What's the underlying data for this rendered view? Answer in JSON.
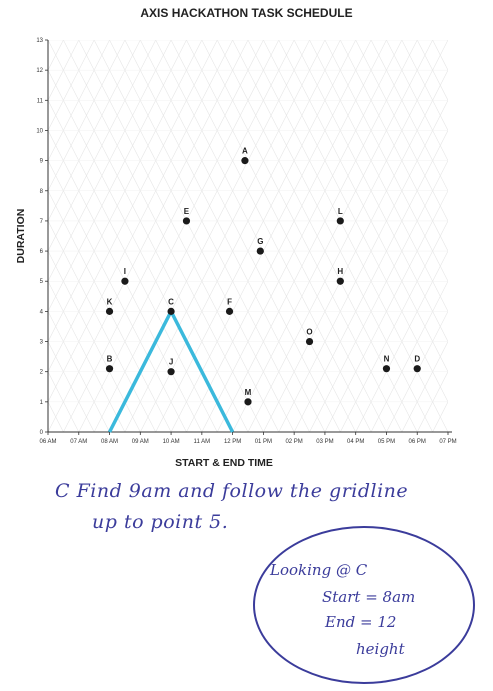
{
  "chart_data": {
    "type": "scatter",
    "title": "AXIS HACKATHON TASK SCHEDULE",
    "xlabel": "START & END TIME",
    "ylabel": "DURATION",
    "x_ticks": [
      "06 AM",
      "07 AM",
      "08 AM",
      "09 AM",
      "10 AM",
      "11 AM",
      "12 PM",
      "01 PM",
      "02 PM",
      "03 PM",
      "04 PM",
      "05 PM",
      "06 PM",
      "07 PM"
    ],
    "y_ticks": [
      "0",
      "1",
      "2",
      "3",
      "4",
      "5",
      "6",
      "7",
      "8",
      "9",
      "10",
      "11",
      "12",
      "13"
    ],
    "xlim": [
      6,
      19
    ],
    "ylim": [
      0,
      13
    ],
    "x_unit": "hour of day (6 = 06 AM, 19 = 07 PM)",
    "points": [
      {
        "label": "A",
        "x": 12.4,
        "y": 9
      },
      {
        "label": "B",
        "x": 8.0,
        "y": 2.1
      },
      {
        "label": "C",
        "x": 10.0,
        "y": 4
      },
      {
        "label": "D",
        "x": 18.0,
        "y": 2.1
      },
      {
        "label": "E",
        "x": 10.5,
        "y": 7
      },
      {
        "label": "F",
        "x": 11.9,
        "y": 4
      },
      {
        "label": "G",
        "x": 12.9,
        "y": 6
      },
      {
        "label": "H",
        "x": 15.5,
        "y": 5
      },
      {
        "label": "I",
        "x": 8.5,
        "y": 5
      },
      {
        "label": "J",
        "x": 10.0,
        "y": 2
      },
      {
        "label": "K",
        "x": 8.0,
        "y": 4
      },
      {
        "label": "L",
        "x": 15.5,
        "y": 7
      },
      {
        "label": "M",
        "x": 12.5,
        "y": 1
      },
      {
        "label": "N",
        "x": 17.0,
        "y": 2.1
      },
      {
        "label": "O",
        "x": 14.5,
        "y": 3
      }
    ],
    "highlight_path": {
      "label": "C",
      "points": [
        [
          8,
          0
        ],
        [
          10,
          4
        ],
        [
          12,
          0
        ]
      ],
      "color": "#3bb9dc"
    },
    "grid": "triangular (diagonal) gridlines",
    "point_color": "#1a1a1a"
  },
  "annotations": {
    "note_line1": "C Find 9am and follow the gridline",
    "note_line2": "up to point 5.",
    "callout": {
      "line1": "Looking @ C",
      "line2": "Start = 8am",
      "line3": "End = 12",
      "line4": "height"
    }
  }
}
